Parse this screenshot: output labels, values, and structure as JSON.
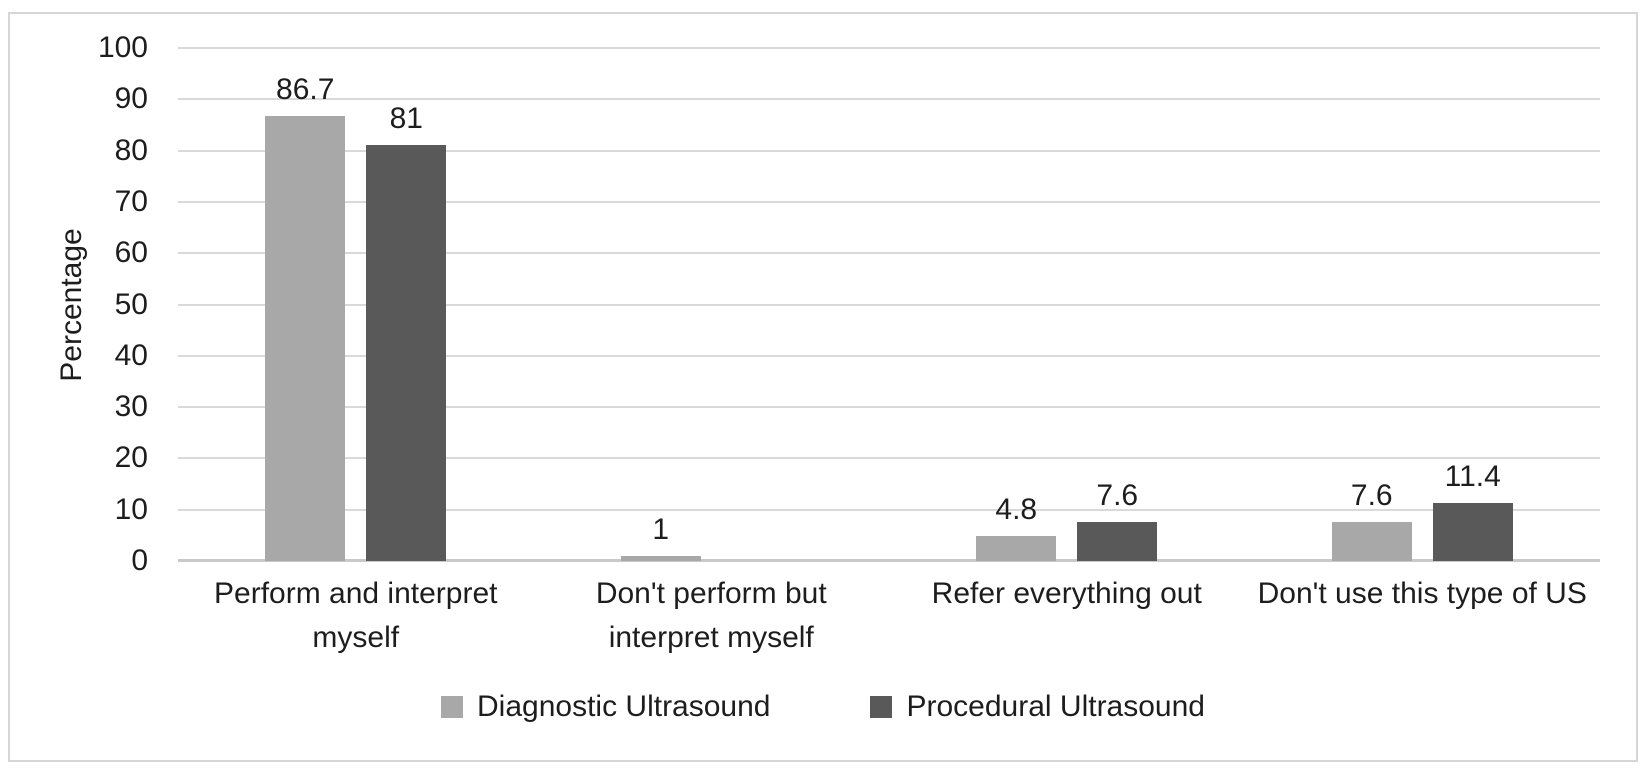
{
  "colors": {
    "bar_light": "#a8a8a8",
    "bar_dark": "#595959",
    "grid": "#d9d9d9",
    "axis": "#c9c9c9",
    "text": "#1d1d1d",
    "frame_border": "#d6d6d6",
    "background": "#ffffff"
  },
  "chart_data": {
    "type": "bar",
    "title": "",
    "xlabel": "",
    "ylabel": "Percentage",
    "ylim": [
      0,
      100
    ],
    "ytick_step": 10,
    "grid": true,
    "legend_position": "bottom",
    "categories": [
      "Perform and interpret\nmyself",
      "Don't perform but\ninterpret myself",
      "Refer everything out",
      "Don't use this type of US"
    ],
    "series": [
      {
        "name": "Diagnostic Ultrasound",
        "color": "#a8a8a8",
        "values": [
          86.7,
          1,
          4.8,
          7.6
        ],
        "labels": [
          "86.7",
          "1",
          "4.8",
          "7.6"
        ]
      },
      {
        "name": "Procedural Ultrasound",
        "color": "#595959",
        "values": [
          81,
          0,
          7.6,
          11.4
        ],
        "labels": [
          "81",
          "",
          "7.6",
          "11.4"
        ]
      }
    ]
  }
}
